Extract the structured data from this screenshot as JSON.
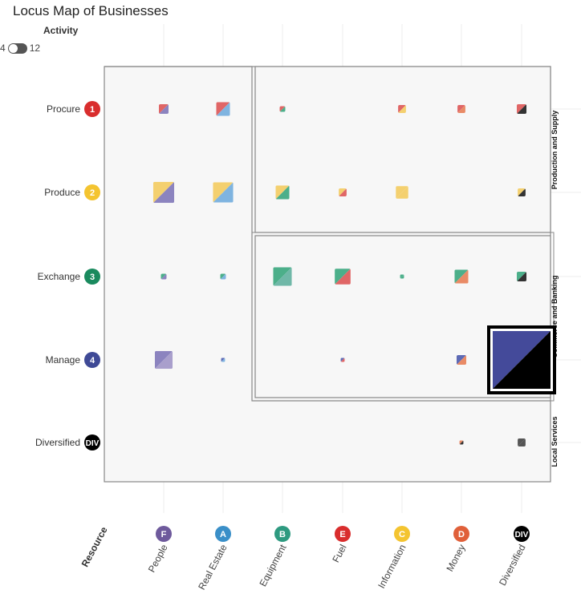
{
  "title": "Locus Map of Businesses",
  "activity": {
    "label": "Activity",
    "min_label": "4",
    "max_label": "12"
  },
  "chart_data": {
    "type": "heatmap",
    "title": "Locus Map of Businesses",
    "xlabel": "Resource",
    "ylabel": "",
    "rows": [
      {
        "id": "procure",
        "label": "Procure",
        "badge": "1",
        "color": "#d92d2d"
      },
      {
        "id": "produce",
        "label": "Produce",
        "badge": "2",
        "color": "#f4c430"
      },
      {
        "id": "exchange",
        "label": "Exchange",
        "badge": "3",
        "color": "#1a8a5e"
      },
      {
        "id": "manage",
        "label": "Manage",
        "badge": "4",
        "color": "#3f4a96"
      },
      {
        "id": "diversified",
        "label": "Diversified",
        "badge": "DIV",
        "color": "#000000"
      }
    ],
    "columns": [
      {
        "id": "people",
        "label": "People",
        "badge": "F",
        "color": "#6e5a9c"
      },
      {
        "id": "real-estate",
        "label": "Real Estate",
        "badge": "A",
        "color": "#3a8fc8"
      },
      {
        "id": "equipment",
        "label": "Equipment",
        "badge": "B",
        "color": "#2e9a80"
      },
      {
        "id": "fuel",
        "label": "Fuel",
        "badge": "E",
        "color": "#d92d2d"
      },
      {
        "id": "information",
        "label": "Information",
        "badge": "C",
        "color": "#f4c430"
      },
      {
        "id": "money",
        "label": "Money",
        "badge": "D",
        "color": "#e0603a"
      },
      {
        "id": "diversified",
        "label": "Diversified",
        "badge": "DIV",
        "color": "#000000"
      }
    ],
    "groups": [
      {
        "label": "Production and Supply",
        "rows": [
          "procure",
          "produce"
        ],
        "columns": [
          "equipment",
          "diversified"
        ]
      },
      {
        "label": "Commerce and Banking",
        "rows": [
          "exchange",
          "manage"
        ],
        "columns": [
          "equipment",
          "diversified"
        ]
      },
      {
        "label": "Local Services",
        "rows": [
          "procure",
          "diversified"
        ],
        "columns": [
          "people",
          "diversified"
        ]
      }
    ],
    "cells": [
      {
        "row": "procure",
        "col": "people",
        "value": 3,
        "colors": [
          "#e06666",
          "#8c84bf"
        ]
      },
      {
        "row": "procure",
        "col": "real-estate",
        "value": 6,
        "colors": [
          "#e06666",
          "#7fb4e0"
        ]
      },
      {
        "row": "procure",
        "col": "equipment",
        "value": 1,
        "colors": [
          "#e06666",
          "#4caf8a"
        ]
      },
      {
        "row": "procure",
        "col": "information",
        "value": 2,
        "colors": [
          "#e06666",
          "#f4d06f"
        ]
      },
      {
        "row": "procure",
        "col": "money",
        "value": 2,
        "colors": [
          "#e06666",
          "#e98b66"
        ]
      },
      {
        "row": "procure",
        "col": "diversified",
        "value": 3,
        "colors": [
          "#e06666",
          "#333333"
        ]
      },
      {
        "row": "produce",
        "col": "people",
        "value": 14,
        "colors": [
          "#f4d06f",
          "#8c84bf"
        ]
      },
      {
        "row": "produce",
        "col": "real-estate",
        "value": 13,
        "colors": [
          "#f4d06f",
          "#7fb4e0"
        ]
      },
      {
        "row": "produce",
        "col": "equipment",
        "value": 6,
        "colors": [
          "#f4d06f",
          "#4caf8a"
        ]
      },
      {
        "row": "produce",
        "col": "fuel",
        "value": 2,
        "colors": [
          "#f4d06f",
          "#e06666"
        ]
      },
      {
        "row": "produce",
        "col": "information",
        "value": 5,
        "colors": [
          "#f4d06f",
          "#f4d06f"
        ]
      },
      {
        "row": "produce",
        "col": "diversified",
        "value": 2,
        "colors": [
          "#f4d06f",
          "#333333"
        ]
      },
      {
        "row": "exchange",
        "col": "people",
        "value": 1,
        "colors": [
          "#4caf8a",
          "#8c84bf"
        ]
      },
      {
        "row": "exchange",
        "col": "real-estate",
        "value": 1,
        "colors": [
          "#4caf8a",
          "#7fb4e0"
        ]
      },
      {
        "row": "exchange",
        "col": "equipment",
        "value": 11,
        "colors": [
          "#4caf8a",
          "#70b8a8"
        ]
      },
      {
        "row": "exchange",
        "col": "fuel",
        "value": 8,
        "colors": [
          "#4caf8a",
          "#e06666"
        ]
      },
      {
        "row": "exchange",
        "col": "information",
        "value": 0.5,
        "colors": [
          "#4caf8a",
          "#4caf8a"
        ]
      },
      {
        "row": "exchange",
        "col": "money",
        "value": 6,
        "colors": [
          "#4caf8a",
          "#e98b66"
        ]
      },
      {
        "row": "exchange",
        "col": "diversified",
        "value": 3,
        "colors": [
          "#4caf8a",
          "#333333"
        ]
      },
      {
        "row": "manage",
        "col": "people",
        "value": 10,
        "colors": [
          "#8c84bf",
          "#a99fcc"
        ]
      },
      {
        "row": "manage",
        "col": "real-estate",
        "value": 0.5,
        "colors": [
          "#5d6ab5",
          "#7fb4e0"
        ]
      },
      {
        "row": "manage",
        "col": "fuel",
        "value": 0.5,
        "colors": [
          "#5d6ab5",
          "#e06666"
        ]
      },
      {
        "row": "manage",
        "col": "money",
        "value": 3,
        "colors": [
          "#5d6ab5",
          "#e98b66"
        ]
      },
      {
        "row": "manage",
        "col": "diversified",
        "value": 100,
        "colors": [
          "#444a9a",
          "#000000"
        ],
        "highlighted": true
      },
      {
        "row": "diversified",
        "col": "money",
        "value": 0.5,
        "colors": [
          "#e98b66",
          "#333333"
        ]
      },
      {
        "row": "diversified",
        "col": "diversified",
        "value": 2,
        "colors": [
          "#555555",
          "#555555"
        ]
      }
    ]
  }
}
